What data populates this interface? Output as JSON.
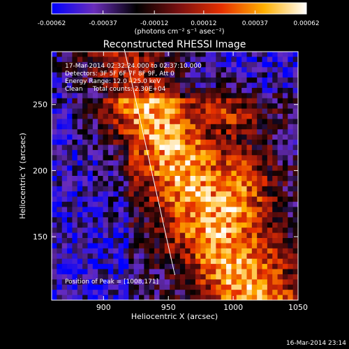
{
  "chart_data": {
    "type": "heatmap",
    "title": "Reconstructed RHESSI Image",
    "xlabel": "Heliocentric X (arcsec)",
    "ylabel": "Heliocentric Y (arcsec)",
    "xlim": [
      860,
      1050
    ],
    "ylim": [
      102,
      290
    ],
    "x_ticks": [
      900,
      950,
      1000,
      1050
    ],
    "x_tick_labels": [
      "900",
      "950",
      "1000",
      "1050"
    ],
    "y_ticks": [
      150,
      200,
      250
    ],
    "y_tick_labels": [
      "150",
      "200",
      "250"
    ],
    "colorbar": {
      "min": -0.00062,
      "max": 0.00062,
      "ticks": [
        -0.00062,
        -0.00037,
        -0.00012,
        0.00012,
        0.00037,
        0.00062
      ],
      "tick_labels": [
        "-0.00062",
        "-0.00037",
        "-0.00012",
        "0.00012",
        "0.00037",
        "0.00062"
      ],
      "units_label": "(photons cm⁻² s⁻¹ asec⁻²)",
      "colors": [
        "#0000ff",
        "#6a2dbb",
        "#000000",
        "#7a1010",
        "#e63000",
        "#ffb000",
        "#ffffff"
      ]
    },
    "annotations": [
      "17-Mar-2014 02:32:24.000 to 02:37:10.000",
      "Detectors: 3F 5F 6F 7F 8F 9F, Att 0",
      "Energy Range: 12.0 - 25.0 keV",
      "Clean     Total counts: 2.30E+04"
    ],
    "peak_label": "Position of Peak = [1008,171]",
    "peak": {
      "x": 1008,
      "y": 171
    },
    "limb_line": [
      {
        "x": 916,
        "y": 292
      },
      {
        "x": 955,
        "y": 121
      }
    ],
    "grid": false
  },
  "footer": {
    "timestamp": "16-Mar-2014 23:14"
  }
}
